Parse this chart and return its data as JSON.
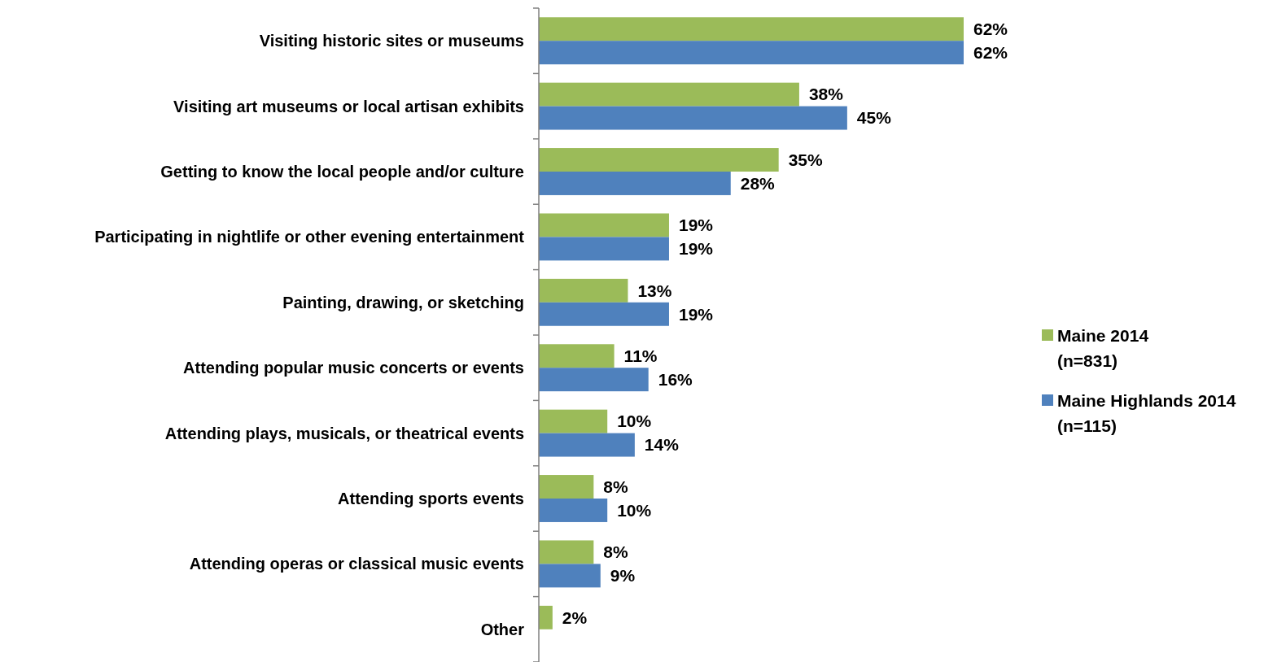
{
  "chart_data": {
    "type": "bar",
    "orientation": "horizontal",
    "legend": "right",
    "categories": [
      "Visiting historic sites or museums",
      "Visiting art museums or local artisan exhibits",
      "Getting to know the local people and/or culture",
      "Participating in nightlife or other evening entertainment",
      "Painting, drawing, or sketching",
      "Attending popular music concerts or events",
      "Attending plays, musicals, or theatrical events",
      "Attending sports events",
      "Attending operas or classical music events",
      "Other"
    ],
    "series": [
      {
        "name": "Maine 2014 (n=831)",
        "color": "#9bbb59",
        "values": [
          62,
          38,
          35,
          19,
          13,
          11,
          10,
          8,
          8,
          2
        ],
        "value_labels": [
          "62%",
          "38%",
          "35%",
          "19%",
          "13%",
          "11%",
          "10%",
          "8%",
          "8%",
          "2%"
        ]
      },
      {
        "name": "Maine Highlands 2014 (n=115)",
        "color": "#4f81bd",
        "values": [
          62,
          45,
          28,
          19,
          19,
          16,
          14,
          10,
          9,
          null
        ],
        "value_labels": [
          "62%",
          "45%",
          "28%",
          "19%",
          "19%",
          "16%",
          "14%",
          "10%",
          "9%",
          null
        ]
      }
    ]
  }
}
